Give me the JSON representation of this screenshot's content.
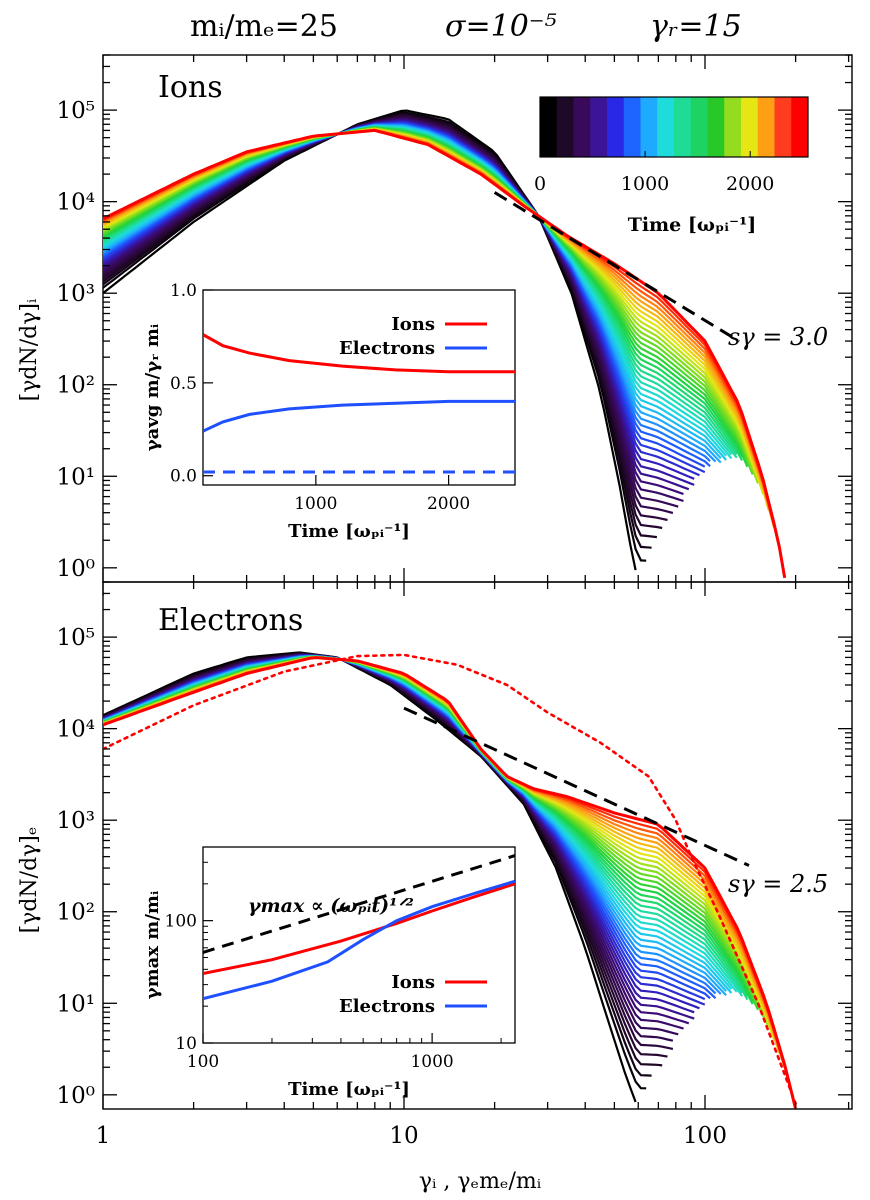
{
  "header": {
    "mass_ratio": "mᵢ/mₑ=25",
    "sigma": "σ=10⁻⁵",
    "gamma_r": "γᵣ=15"
  },
  "colorbar": {
    "ticks": [
      "0",
      "1000",
      "2000"
    ],
    "label": "Time [ωₚᵢ⁻¹]",
    "colors": [
      "#000000",
      "#1e0a28",
      "#3a0a5a",
      "#3c1496",
      "#2828e6",
      "#1e64ff",
      "#1eaaff",
      "#1edcdc",
      "#1edc96",
      "#1ed264",
      "#28c828",
      "#96dc1e",
      "#e6e614",
      "#ffa014",
      "#ff3c1e",
      "#ff0000"
    ]
  },
  "xaxis_label": "γᵢ ,  γₑmₑ/mᵢ",
  "chart_data": [
    {
      "type": "line",
      "panel": "Ions",
      "title": "Ions",
      "ylabel": "[γdN/dγ]ᵢ",
      "xscale": "log",
      "yscale": "log",
      "xlim": [
        1,
        300
      ],
      "ylim": [
        0.7,
        400000
      ],
      "xticks": [
        "1",
        "10",
        "100"
      ],
      "yticks": [
        "10⁰",
        "10¹",
        "10²",
        "10³",
        "10⁴",
        "10⁵"
      ],
      "time_range": [
        0,
        2500
      ],
      "series": [
        {
          "time": 0,
          "x": [
            1,
            2,
            4,
            7,
            10,
            14,
            20,
            28,
            36,
            45,
            52,
            57,
            60
          ],
          "y": [
            1000,
            6000,
            28000,
            70000,
            100000,
            80000,
            35000,
            7000,
            1000,
            80,
            8,
            1.5,
            0.7
          ]
        },
        {
          "time": 2500,
          "x": [
            1,
            2,
            3,
            5,
            8,
            12,
            18,
            25,
            35,
            50,
            70,
            100,
            130,
            155,
            175,
            185
          ],
          "y": [
            6500,
            20000,
            35000,
            52000,
            60000,
            42000,
            20000,
            9000,
            4200,
            2100,
            1000,
            300,
            60,
            10,
            2,
            0.7
          ]
        }
      ],
      "fit": {
        "label": "sγ = 3.0",
        "slope": -3.0,
        "x": [
          20,
          130
        ]
      },
      "inset": {
        "type": "line",
        "xlabel": "Time [ωₚᵢ⁻¹]",
        "ylabel": "γavg m/γᵣ mᵢ",
        "xlim": [
          150,
          2500
        ],
        "ylim": [
          -0.05,
          1.0
        ],
        "xticks": [
          "1000",
          "2000"
        ],
        "yticks": [
          "0.0",
          "0.5",
          "1.0"
        ],
        "series": [
          {
            "name": "Ions",
            "color": "#ff0000",
            "style": "solid",
            "x": [
              150,
              300,
              500,
              800,
              1200,
              1600,
              2000,
              2500
            ],
            "y": [
              0.76,
              0.7,
              0.66,
              0.62,
              0.59,
              0.57,
              0.56,
              0.56
            ]
          },
          {
            "name": "Electrons",
            "color": "#1e50ff",
            "style": "solid",
            "x": [
              150,
              300,
              500,
              800,
              1200,
              1600,
              2000,
              2500
            ],
            "y": [
              0.24,
              0.29,
              0.33,
              0.36,
              0.38,
              0.39,
              0.4,
              0.4
            ]
          },
          {
            "name": "",
            "color": "#1e50ff",
            "style": "dashed",
            "x": [
              150,
              2500
            ],
            "y": [
              0.02,
              0.02
            ]
          }
        ]
      }
    },
    {
      "type": "line",
      "panel": "Electrons",
      "title": "Electrons",
      "ylabel": "[γdN/dγ]ₑ",
      "xscale": "log",
      "yscale": "log",
      "xlim": [
        1,
        300
      ],
      "ylim": [
        0.7,
        400000
      ],
      "xticks": [
        "1",
        "10",
        "100"
      ],
      "yticks": [
        "10⁰",
        "10¹",
        "10²",
        "10³",
        "10⁴",
        "10⁵"
      ],
      "time_range": [
        0,
        2500
      ],
      "series": [
        {
          "time": 0,
          "x": [
            1,
            2,
            3,
            4.5,
            6,
            9,
            13,
            18,
            25,
            32,
            40,
            48,
            55,
            60
          ],
          "y": [
            14000,
            40000,
            60000,
            68000,
            60000,
            30000,
            12000,
            5000,
            1500,
            300,
            40,
            6,
            1.5,
            0.7
          ]
        },
        {
          "time": 2500,
          "x": [
            1,
            2,
            3,
            5,
            7,
            10,
            14,
            18,
            22,
            27,
            35,
            50,
            70,
            100,
            130,
            160,
            185,
            200
          ],
          "y": [
            11000,
            25000,
            40000,
            60000,
            55000,
            40000,
            20000,
            6000,
            3000,
            2200,
            1800,
            1200,
            900,
            300,
            60,
            10,
            2,
            0.7
          ]
        },
        {
          "name": "reference",
          "style": "dotted",
          "x": [
            1,
            2,
            4,
            7,
            10,
            15,
            22,
            30,
            45,
            65,
            80,
            90,
            110,
            150,
            200
          ],
          "y": [
            6000,
            18000,
            42000,
            62000,
            64000,
            50000,
            30000,
            15000,
            7000,
            3000,
            1000,
            400,
            100,
            10,
            0.8
          ]
        }
      ],
      "fit": {
        "label": "sγ = 2.5",
        "slope": -2.5,
        "x": [
          10,
          140
        ]
      },
      "inset": {
        "type": "line",
        "xlabel": "Time [ωₚᵢ⁻¹]",
        "ylabel": "γmax m/mᵢ",
        "xscale": "log",
        "yscale": "log",
        "xlim": [
          100,
          2300
        ],
        "ylim": [
          10,
          400
        ],
        "xticks": [
          "100",
          "1000"
        ],
        "yticks": [
          "10",
          "100"
        ],
        "annotation": "γmax ∝ (ωₚᵢt)¹ᐟ²",
        "series": [
          {
            "name": "Ions",
            "color": "#ff0000",
            "style": "solid",
            "x": [
              100,
              200,
              400,
              700,
              1000,
              1500,
              2300
            ],
            "y": [
              37,
              48,
              68,
              95,
              120,
              155,
              200
            ]
          },
          {
            "name": "Electrons",
            "color": "#1e50ff",
            "style": "solid",
            "x": [
              100,
              200,
              350,
              500,
              700,
              1000,
              1500,
              2300
            ],
            "y": [
              23,
              32,
              46,
              70,
              100,
              130,
              165,
              210
            ]
          },
          {
            "name": "",
            "color": "#000000",
            "style": "dashed",
            "x": [
              100,
              2300
            ],
            "y": [
              55,
              340
            ]
          }
        ]
      }
    }
  ]
}
